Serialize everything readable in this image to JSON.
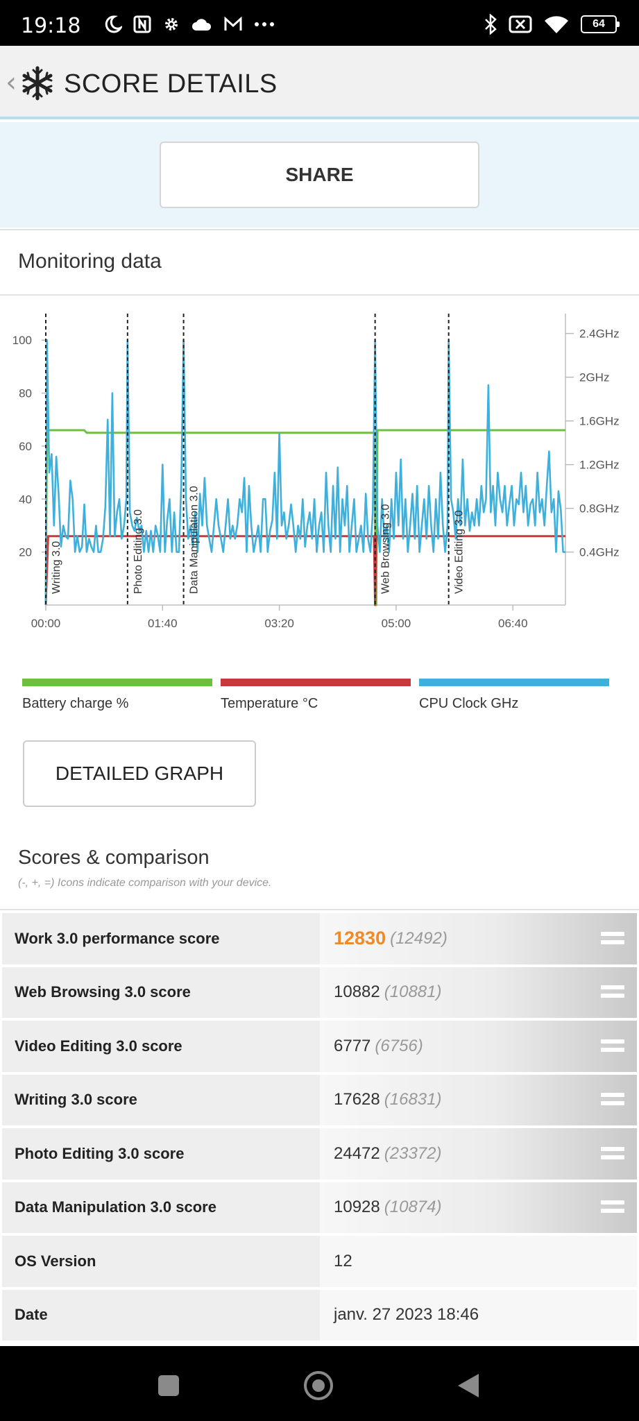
{
  "status_bar": {
    "time": "19:18",
    "left_icons": [
      "moon-icon",
      "nfc-icon",
      "gear-icon",
      "cloud-icon",
      "mail-icon",
      "more-dots-icon"
    ],
    "right_icons": [
      "bluetooth-icon",
      "mute-icon",
      "wifi-icon"
    ],
    "battery": "64"
  },
  "app_bar": {
    "title": "SCORE DETAILS",
    "back_icon": "chevron-left-icon",
    "logo_icon": "snowflake-icon"
  },
  "share_label": "SHARE",
  "monitoring": {
    "title": "Monitoring data",
    "detail_button": "DETAILED GRAPH"
  },
  "chart_data": {
    "type": "line",
    "x_ticks": [
      "00:00",
      "01:40",
      "03:20",
      "05:00",
      "06:40"
    ],
    "xlim": [
      0,
      445
    ],
    "y_left_ticks": [
      20,
      40,
      60,
      80,
      100
    ],
    "ylim_left": [
      0,
      110
    ],
    "y_right_ticks": [
      "0.4GHz",
      "0.8GHz",
      "1.2GHz",
      "1.6GHz",
      "2GHz",
      "2.4GHz"
    ],
    "markers": [
      {
        "t": 0,
        "label": "Writing 3.0"
      },
      {
        "t": 70,
        "label": "Photo Editing 3.0"
      },
      {
        "t": 118,
        "label": "Data Manipulation 3.0"
      },
      {
        "t": 282,
        "label": "Web Browsing 3.0"
      },
      {
        "t": 345,
        "label": "Video Editing 3.0"
      }
    ],
    "series": [
      {
        "name": "Battery charge %",
        "color": "#6cbf3f",
        "points": [
          [
            0,
            0
          ],
          [
            1,
            66
          ],
          [
            33,
            66
          ],
          [
            35,
            65
          ],
          [
            281,
            65
          ],
          [
            283,
            0
          ],
          [
            284,
            66
          ],
          [
            445,
            66
          ]
        ]
      },
      {
        "name": "Temperature °C",
        "color": "#c8393b",
        "points": [
          [
            0,
            0
          ],
          [
            2,
            26
          ],
          [
            281,
            26
          ],
          [
            282,
            0
          ],
          [
            283,
            26
          ],
          [
            445,
            26
          ]
        ]
      },
      {
        "name": "CPU Clock GHz",
        "color": "#3fb0dc",
        "points": [
          [
            0,
            0
          ],
          [
            1,
            100
          ],
          [
            3,
            50
          ],
          [
            5,
            57
          ],
          [
            7,
            30
          ],
          [
            9,
            56
          ],
          [
            11,
            42
          ],
          [
            13,
            22
          ],
          [
            15,
            30
          ],
          [
            17,
            26
          ],
          [
            19,
            25
          ],
          [
            21,
            47
          ],
          [
            23,
            40
          ],
          [
            25,
            20
          ],
          [
            27,
            26
          ],
          [
            29,
            20
          ],
          [
            31,
            22
          ],
          [
            33,
            38
          ],
          [
            35,
            20
          ],
          [
            37,
            25
          ],
          [
            39,
            22
          ],
          [
            41,
            20
          ],
          [
            43,
            30
          ],
          [
            45,
            20
          ],
          [
            47,
            20
          ],
          [
            49,
            25
          ],
          [
            51,
            37
          ],
          [
            53,
            70
          ],
          [
            55,
            26
          ],
          [
            57,
            80
          ],
          [
            59,
            26
          ],
          [
            61,
            35
          ],
          [
            63,
            40
          ],
          [
            65,
            25
          ],
          [
            67,
            30
          ],
          [
            69,
            40
          ],
          [
            70,
            100
          ],
          [
            72,
            35
          ],
          [
            74,
            30
          ],
          [
            76,
            28
          ],
          [
            78,
            33
          ],
          [
            80,
            28
          ],
          [
            82,
            30
          ],
          [
            84,
            20
          ],
          [
            86,
            28
          ],
          [
            88,
            20
          ],
          [
            90,
            28
          ],
          [
            92,
            20
          ],
          [
            94,
            30
          ],
          [
            96,
            26
          ],
          [
            98,
            20
          ],
          [
            100,
            53
          ],
          [
            102,
            20
          ],
          [
            104,
            32
          ],
          [
            106,
            40
          ],
          [
            108,
            20
          ],
          [
            110,
            35
          ],
          [
            112,
            20
          ],
          [
            114,
            20
          ],
          [
            116,
            45
          ],
          [
            118,
            100
          ],
          [
            120,
            40
          ],
          [
            122,
            25
          ],
          [
            124,
            30
          ],
          [
            126,
            22
          ],
          [
            128,
            35
          ],
          [
            130,
            20
          ],
          [
            132,
            42
          ],
          [
            134,
            30
          ],
          [
            136,
            48
          ],
          [
            138,
            30
          ],
          [
            140,
            25
          ],
          [
            142,
            20
          ],
          [
            144,
            30
          ],
          [
            146,
            40
          ],
          [
            148,
            30
          ],
          [
            150,
            25
          ],
          [
            152,
            20
          ],
          [
            154,
            30
          ],
          [
            156,
            40
          ],
          [
            158,
            25
          ],
          [
            160,
            30
          ],
          [
            162,
            25
          ],
          [
            164,
            30
          ],
          [
            166,
            40
          ],
          [
            168,
            35
          ],
          [
            170,
            48
          ],
          [
            172,
            20
          ],
          [
            174,
            45
          ],
          [
            176,
            30
          ],
          [
            178,
            20
          ],
          [
            180,
            25
          ],
          [
            182,
            30
          ],
          [
            184,
            20
          ],
          [
            186,
            40
          ],
          [
            188,
            40
          ],
          [
            190,
            20
          ],
          [
            192,
            28
          ],
          [
            194,
            32
          ],
          [
            196,
            50
          ],
          [
            198,
            25
          ],
          [
            200,
            65
          ],
          [
            202,
            30
          ],
          [
            204,
            35
          ],
          [
            206,
            25
          ],
          [
            208,
            30
          ],
          [
            210,
            38
          ],
          [
            212,
            30
          ],
          [
            214,
            20
          ],
          [
            216,
            30
          ],
          [
            218,
            25
          ],
          [
            220,
            40
          ],
          [
            222,
            22
          ],
          [
            224,
            30
          ],
          [
            226,
            35
          ],
          [
            228,
            25
          ],
          [
            230,
            40
          ],
          [
            232,
            20
          ],
          [
            234,
            30
          ],
          [
            236,
            35
          ],
          [
            238,
            20
          ],
          [
            240,
            50
          ],
          [
            242,
            30
          ],
          [
            244,
            20
          ],
          [
            246,
            45
          ],
          [
            248,
            25
          ],
          [
            250,
            52
          ],
          [
            252,
            20
          ],
          [
            254,
            40
          ],
          [
            256,
            30
          ],
          [
            258,
            45
          ],
          [
            260,
            20
          ],
          [
            262,
            30
          ],
          [
            264,
            40
          ],
          [
            266,
            20
          ],
          [
            268,
            25
          ],
          [
            270,
            30
          ],
          [
            272,
            20
          ],
          [
            274,
            42
          ],
          [
            276,
            25
          ],
          [
            278,
            20
          ],
          [
            280,
            35
          ],
          [
            282,
            100
          ],
          [
            284,
            30
          ],
          [
            286,
            20
          ],
          [
            288,
            40
          ],
          [
            290,
            25
          ],
          [
            292,
            30
          ],
          [
            294,
            20
          ],
          [
            296,
            40
          ],
          [
            298,
            25
          ],
          [
            300,
            50
          ],
          [
            302,
            30
          ],
          [
            304,
            55
          ],
          [
            306,
            25
          ],
          [
            308,
            40
          ],
          [
            310,
            20
          ],
          [
            312,
            30
          ],
          [
            314,
            42
          ],
          [
            316,
            25
          ],
          [
            318,
            45
          ],
          [
            320,
            20
          ],
          [
            322,
            30
          ],
          [
            324,
            40
          ],
          [
            326,
            25
          ],
          [
            328,
            45
          ],
          [
            330,
            30
          ],
          [
            332,
            20
          ],
          [
            334,
            40
          ],
          [
            336,
            25
          ],
          [
            338,
            50
          ],
          [
            340,
            30
          ],
          [
            342,
            20
          ],
          [
            344,
            30
          ],
          [
            345,
            100
          ],
          [
            347,
            40
          ],
          [
            349,
            35
          ],
          [
            351,
            25
          ],
          [
            353,
            40
          ],
          [
            355,
            30
          ],
          [
            357,
            55
          ],
          [
            359,
            30
          ],
          [
            361,
            40
          ],
          [
            363,
            28
          ],
          [
            365,
            35
          ],
          [
            367,
            30
          ],
          [
            369,
            40
          ],
          [
            371,
            30
          ],
          [
            373,
            45
          ],
          [
            375,
            35
          ],
          [
            377,
            40
          ],
          [
            379,
            83
          ],
          [
            381,
            35
          ],
          [
            383,
            45
          ],
          [
            385,
            30
          ],
          [
            387,
            50
          ],
          [
            389,
            40
          ],
          [
            391,
            35
          ],
          [
            393,
            45
          ],
          [
            395,
            30
          ],
          [
            397,
            38
          ],
          [
            399,
            45
          ],
          [
            401,
            30
          ],
          [
            403,
            40
          ],
          [
            405,
            38
          ],
          [
            407,
            50
          ],
          [
            409,
            35
          ],
          [
            411,
            45
          ],
          [
            413,
            30
          ],
          [
            415,
            38
          ],
          [
            417,
            40
          ],
          [
            419,
            30
          ],
          [
            421,
            50
          ],
          [
            423,
            35
          ],
          [
            425,
            40
          ],
          [
            427,
            30
          ],
          [
            429,
            45
          ],
          [
            431,
            58
          ],
          [
            433,
            35
          ],
          [
            435,
            40
          ],
          [
            437,
            20
          ],
          [
            439,
            43
          ],
          [
            441,
            36
          ],
          [
            443,
            20
          ],
          [
            445,
            20
          ]
        ]
      }
    ]
  },
  "scores": {
    "title": "Scores & comparison",
    "subtitle": "(-, +, =) Icons indicate comparison with your device.",
    "rows": [
      {
        "label": "Work 3.0 performance score",
        "value": "12830",
        "ref": "(12492)",
        "icon": "equal-icon"
      },
      {
        "label": "Web Browsing 3.0 score",
        "value": "10882",
        "ref": "(10881)",
        "icon": "equal-icon"
      },
      {
        "label": "Video Editing 3.0 score",
        "value": "6777",
        "ref": "(6756)",
        "icon": "equal-icon"
      },
      {
        "label": "Writing 3.0 score",
        "value": "17628",
        "ref": "(16831)",
        "icon": "equal-icon"
      },
      {
        "label": "Photo Editing 3.0 score",
        "value": "24472",
        "ref": "(23372)",
        "icon": "equal-icon"
      },
      {
        "label": "Data Manipulation 3.0 score",
        "value": "10928",
        "ref": "(10874)",
        "icon": "equal-icon"
      },
      {
        "label": "OS Version",
        "value": "12"
      },
      {
        "label": "Date",
        "value": "janv. 27 2023 18:46"
      }
    ]
  },
  "colors": {
    "accent_score": "#f08a24",
    "battery": "#6cbf3f",
    "temperature": "#c8393b",
    "cpu": "#3fb0dc"
  },
  "nav_bar": [
    "recents-square-icon",
    "home-circle-icon",
    "back-triangle-icon"
  ]
}
